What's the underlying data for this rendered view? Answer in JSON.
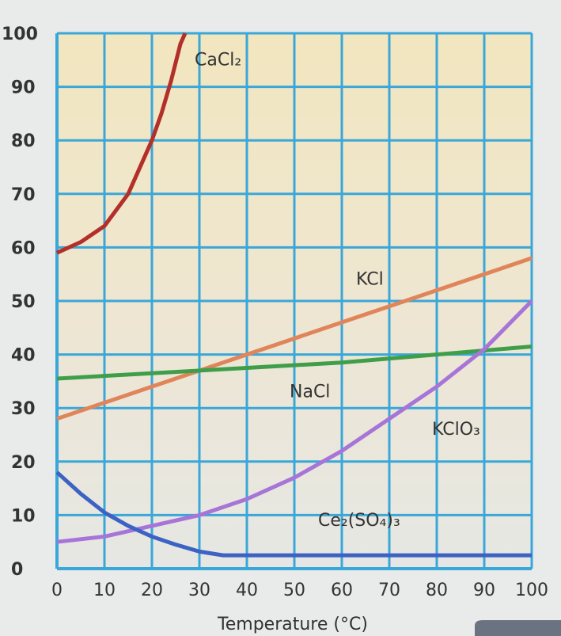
{
  "chart_data": {
    "type": "line",
    "title": "",
    "xlabel": "Temperature (°C)",
    "ylabel": "",
    "xlim": [
      0,
      100
    ],
    "ylim": [
      0,
      100
    ],
    "grid": true,
    "x_ticks": [
      "0",
      "10",
      "20",
      "30",
      "40",
      "50",
      "60",
      "70",
      "80",
      "90",
      "100"
    ],
    "y_ticks": [
      "0",
      "10",
      "20",
      "30",
      "40",
      "50",
      "60",
      "70",
      "80",
      "90",
      "100"
    ],
    "series": [
      {
        "name": "CaCl₂",
        "color": "#b3302a",
        "x": [
          0,
          5,
          10,
          15,
          20,
          22,
          24,
          26,
          27
        ],
        "y": [
          59,
          61,
          64,
          70,
          80,
          85,
          91,
          98,
          100
        ]
      },
      {
        "name": "KCl",
        "color": "#e0855a",
        "x": [
          0,
          10,
          20,
          30,
          40,
          50,
          60,
          70,
          80,
          90,
          100
        ],
        "y": [
          28,
          31,
          34,
          37,
          40,
          43,
          46,
          49,
          52,
          55,
          58
        ]
      },
      {
        "name": "NaCl",
        "color": "#3f9e4a",
        "x": [
          0,
          20,
          40,
          60,
          80,
          100
        ],
        "y": [
          35.5,
          36.5,
          37.5,
          38.5,
          40,
          41.5
        ]
      },
      {
        "name": "KClO₃",
        "color": "#a774d8",
        "x": [
          0,
          10,
          20,
          30,
          40,
          50,
          60,
          70,
          80,
          90,
          100
        ],
        "y": [
          5,
          6,
          8,
          10,
          13,
          17,
          22,
          28,
          34,
          41,
          50
        ]
      },
      {
        "name": "Ce₂(SO₄)₃",
        "color": "#3c63c4",
        "x": [
          0,
          5,
          10,
          15,
          20,
          25,
          30,
          35,
          100
        ],
        "y": [
          18,
          14,
          10.5,
          8,
          6,
          4.5,
          3.2,
          2.5,
          2.5
        ]
      }
    ],
    "labels": [
      {
        "text": "CaCl₂",
        "x": 29,
        "y": 94
      },
      {
        "text": "KCl",
        "x": 63,
        "y": 53
      },
      {
        "text": "NaCl",
        "x": 49,
        "y": 32
      },
      {
        "text": "KClO₃",
        "x": 79,
        "y": 25
      },
      {
        "text": "Ce₂(SO₄)₃",
        "x": 55,
        "y": 8
      }
    ]
  }
}
